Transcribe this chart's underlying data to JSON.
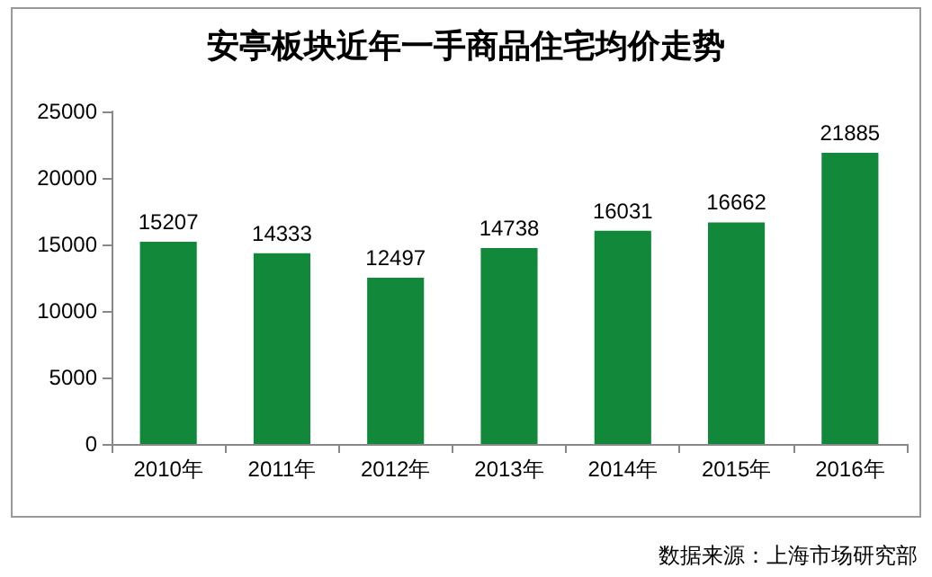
{
  "chart_data": {
    "type": "bar",
    "title": "安亭板块近年一手商品住宅均价走势",
    "categories": [
      "2010年",
      "2011年",
      "2012年",
      "2013年",
      "2014年",
      "2015年",
      "2016年"
    ],
    "values": [
      15207,
      14333,
      12497,
      14738,
      16031,
      16662,
      21885
    ],
    "color": "#12893a",
    "ylim": [
      0,
      25000
    ],
    "yticks": [
      0,
      5000,
      10000,
      15000,
      20000,
      25000
    ],
    "grid": false,
    "data_labels": true,
    "annotations": [
      "数据来源：上海市场研究部"
    ]
  }
}
